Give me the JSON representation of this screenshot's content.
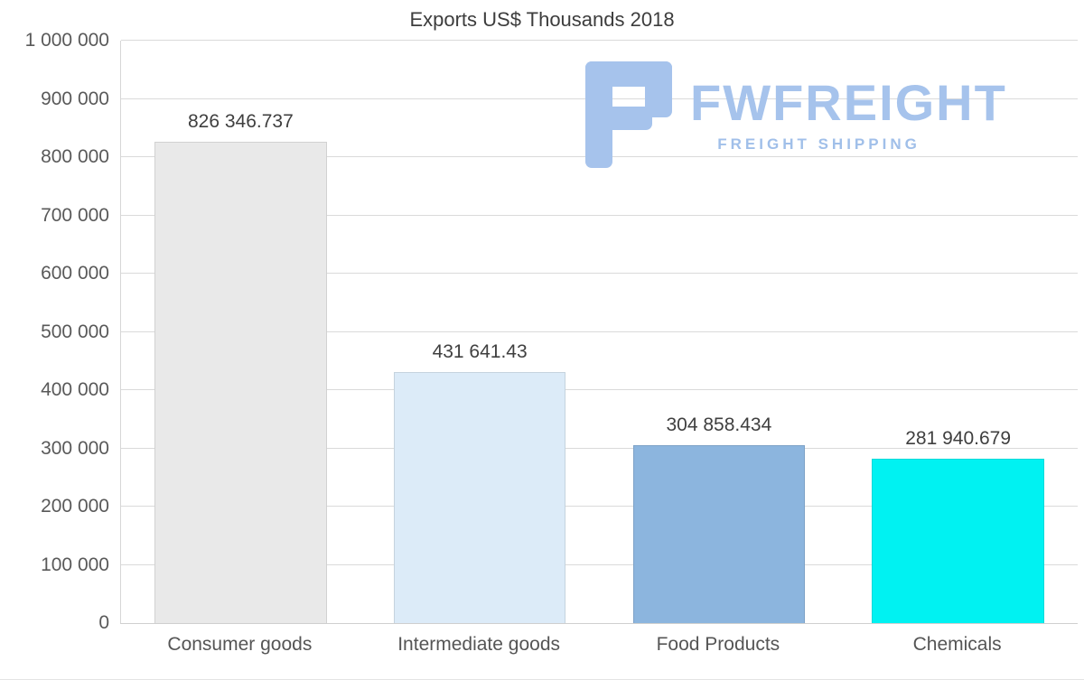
{
  "title": "Exports US$ Thousands 2018",
  "watermark": {
    "brand": "FWFREIGHT",
    "tagline": "FREIGHT SHIPPING",
    "color": "#a6c3ec"
  },
  "chart_data": {
    "type": "bar",
    "title": "Exports US$ Thousands 2018",
    "categories": [
      "Consumer goods",
      "Intermediate goods",
      "Food Products",
      "Chemicals"
    ],
    "values": [
      826346.737,
      431641.43,
      304858.434,
      281940.679
    ],
    "value_labels": [
      "826 346.737",
      "431 641.43",
      "304 858.434",
      "281 940.679"
    ],
    "bar_colors": [
      "#e9e9e9",
      "#dcebf8",
      "#8cb5de",
      "#00f2f2"
    ],
    "xlabel": "",
    "ylabel": "",
    "ylim": [
      0,
      1000000
    ],
    "ytick_step": 100000,
    "ytick_labels": [
      "0",
      "100 000",
      "200 000",
      "300 000",
      "400 000",
      "500 000",
      "600 000",
      "700 000",
      "800 000",
      "900 000",
      "1 000 000"
    ],
    "grid": true,
    "legend": false
  }
}
